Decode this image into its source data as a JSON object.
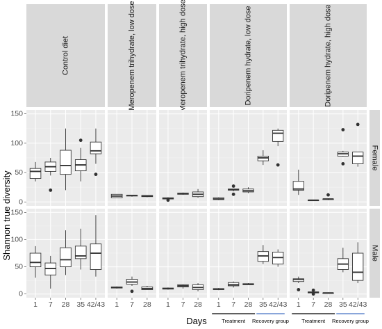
{
  "chart_data": {
    "type": "boxplot",
    "title": "",
    "xlabel": "Days",
    "ylabel": "Shannon true diversity",
    "ylim": [
      0,
      150
    ],
    "yticks": [
      0,
      50,
      100,
      150
    ],
    "columns": [
      "Control diet",
      "Meropenem trihydrate, low dose",
      "Meropenem trihydrate, high dose",
      "Doripenem hydrate, low dose",
      "Doripenem hydrate, high dose"
    ],
    "rows": [
      "Female",
      "Male"
    ],
    "column_days": [
      [
        "1",
        "7",
        "28",
        "35",
        "42/43"
      ],
      [
        "1",
        "7",
        "28"
      ],
      [
        "1",
        "7",
        "28"
      ],
      [
        "1",
        "7",
        "28",
        "35",
        "42/43"
      ],
      [
        "1",
        "7",
        "28",
        "35",
        "42/43"
      ]
    ],
    "groups": [
      {
        "label": "Treatment",
        "days": [
          "1",
          "7",
          "28"
        ],
        "color": "#000000"
      },
      {
        "label": "Recovery group",
        "days": [
          "35",
          "42/43"
        ],
        "color": "#4472c4"
      }
    ],
    "grid": true,
    "boxes": [
      {
        "row": "Female",
        "column": "Control diet",
        "day": "1",
        "min": 35,
        "q1": 40,
        "median": 52,
        "q3": 57,
        "max": 68,
        "outliers": []
      },
      {
        "row": "Female",
        "column": "Control diet",
        "day": "7",
        "min": 45,
        "q1": 52,
        "median": 60,
        "q3": 68,
        "max": 75,
        "outliers": [
          20
        ]
      },
      {
        "row": "Female",
        "column": "Control diet",
        "day": "28",
        "min": 20,
        "q1": 47,
        "median": 62,
        "q3": 88,
        "max": 125,
        "outliers": []
      },
      {
        "row": "Female",
        "column": "Control diet",
        "day": "35",
        "min": 35,
        "q1": 53,
        "median": 63,
        "q3": 72,
        "max": 92,
        "outliers": [
          105
        ]
      },
      {
        "row": "Female",
        "column": "Control diet",
        "day": "42/43",
        "min": 65,
        "q1": 82,
        "median": 87,
        "q3": 102,
        "max": 125,
        "outliers": [
          47
        ]
      },
      {
        "row": "Female",
        "column": "Meropenem trihydrate, low dose",
        "day": "1",
        "min": 7,
        "q1": 7,
        "median": 10,
        "q3": 13,
        "max": 13,
        "outliers": []
      },
      {
        "row": "Female",
        "column": "Meropenem trihydrate, low dose",
        "day": "7",
        "min": 9,
        "q1": 10,
        "median": 11,
        "q3": 11,
        "max": 11,
        "outliers": []
      },
      {
        "row": "Female",
        "column": "Meropenem trihydrate, low dose",
        "day": "28",
        "min": 8,
        "q1": 9,
        "median": 10,
        "q3": 11,
        "max": 11,
        "outliers": []
      },
      {
        "row": "Female",
        "column": "Meropenem trihydrate, high dose",
        "day": "1",
        "min": 5,
        "q1": 5,
        "median": 6,
        "q3": 7,
        "max": 8,
        "outliers": [
          3
        ]
      },
      {
        "row": "Female",
        "column": "Meropenem trihydrate, high dose",
        "day": "7",
        "min": 12,
        "q1": 13,
        "median": 14,
        "q3": 15,
        "max": 16,
        "outliers": []
      },
      {
        "row": "Female",
        "column": "Meropenem trihydrate, high dose",
        "day": "28",
        "min": 7,
        "q1": 9,
        "median": 13,
        "q3": 17,
        "max": 22,
        "outliers": []
      },
      {
        "row": "Female",
        "column": "Doripenem hydrate, low dose",
        "day": "1",
        "min": 3,
        "q1": 4,
        "median": 5,
        "q3": 7,
        "max": 8,
        "outliers": []
      },
      {
        "row": "Female",
        "column": "Doripenem hydrate, low dose",
        "day": "7",
        "min": 18,
        "q1": 20,
        "median": 21,
        "q3": 22,
        "max": 22,
        "outliers": [
          27,
          13
        ]
      },
      {
        "row": "Female",
        "column": "Doripenem hydrate, low dose",
        "day": "28",
        "min": 15,
        "q1": 17,
        "median": 19,
        "q3": 22,
        "max": 25,
        "outliers": []
      },
      {
        "row": "Female",
        "column": "Doripenem hydrate, low dose",
        "day": "35",
        "min": 63,
        "q1": 70,
        "median": 75,
        "q3": 78,
        "max": 88,
        "outliers": []
      },
      {
        "row": "Female",
        "column": "Doripenem hydrate, low dose",
        "day": "42/43",
        "min": 95,
        "q1": 103,
        "median": 117,
        "q3": 122,
        "max": 125,
        "outliers": [
          63
        ]
      },
      {
        "row": "Female",
        "column": "Doripenem hydrate, high dose",
        "day": "1",
        "min": 12,
        "q1": 20,
        "median": 22,
        "q3": 35,
        "max": 55,
        "outliers": []
      },
      {
        "row": "Female",
        "column": "Doripenem hydrate, high dose",
        "day": "7",
        "min": 2,
        "q1": 2,
        "median": 3,
        "q3": 3,
        "max": 3,
        "outliers": []
      },
      {
        "row": "Female",
        "column": "Doripenem hydrate, high dose",
        "day": "28",
        "min": 3,
        "q1": 4,
        "median": 5,
        "q3": 5,
        "max": 6,
        "outliers": [
          12
        ]
      },
      {
        "row": "Female",
        "column": "Doripenem hydrate, high dose",
        "day": "35",
        "min": 77,
        "q1": 78,
        "median": 82,
        "q3": 85,
        "max": 87,
        "outliers": [
          123,
          65
        ]
      },
      {
        "row": "Female",
        "column": "Doripenem hydrate, high dose",
        "day": "42/43",
        "min": 60,
        "q1": 65,
        "median": 78,
        "q3": 85,
        "max": 85,
        "outliers": [
          132
        ]
      },
      {
        "row": "Male",
        "column": "Control diet",
        "day": "1",
        "min": 30,
        "q1": 50,
        "median": 58,
        "q3": 75,
        "max": 88,
        "outliers": []
      },
      {
        "row": "Male",
        "column": "Control diet",
        "day": "7",
        "min": 10,
        "q1": 35,
        "median": 47,
        "q3": 57,
        "max": 70,
        "outliers": []
      },
      {
        "row": "Male",
        "column": "Control diet",
        "day": "28",
        "min": 35,
        "q1": 50,
        "median": 63,
        "q3": 85,
        "max": 117,
        "outliers": []
      },
      {
        "row": "Male",
        "column": "Control diet",
        "day": "35",
        "min": 45,
        "q1": 65,
        "median": 70,
        "q3": 88,
        "max": 120,
        "outliers": []
      },
      {
        "row": "Male",
        "column": "Control diet",
        "day": "42/43",
        "min": 32,
        "q1": 45,
        "median": 75,
        "q3": 92,
        "max": 145,
        "outliers": []
      },
      {
        "row": "Male",
        "column": "Meropenem trihydrate, low dose",
        "day": "1",
        "min": 10,
        "q1": 11,
        "median": 12,
        "q3": 13,
        "max": 14,
        "outliers": []
      },
      {
        "row": "Male",
        "column": "Meropenem trihydrate, low dose",
        "day": "7",
        "min": 15,
        "q1": 18,
        "median": 22,
        "q3": 27,
        "max": 32,
        "outliers": [
          5
        ]
      },
      {
        "row": "Male",
        "column": "Meropenem trihydrate, low dose",
        "day": "28",
        "min": 8,
        "q1": 8,
        "median": 10,
        "q3": 13,
        "max": 15,
        "outliers": []
      },
      {
        "row": "Male",
        "column": "Meropenem trihydrate, high dose",
        "day": "1",
        "min": 8,
        "q1": 9,
        "median": 10,
        "q3": 11,
        "max": 12,
        "outliers": []
      },
      {
        "row": "Male",
        "column": "Meropenem trihydrate, high dose",
        "day": "7",
        "min": 10,
        "q1": 13,
        "median": 15,
        "q3": 17,
        "max": 18,
        "outliers": []
      },
      {
        "row": "Male",
        "column": "Meropenem trihydrate, high dose",
        "day": "28",
        "min": 5,
        "q1": 8,
        "median": 12,
        "q3": 17,
        "max": 20,
        "outliers": []
      },
      {
        "row": "Male",
        "column": "Doripenem hydrate, low dose",
        "day": "1",
        "min": 7,
        "q1": 8,
        "median": 9,
        "q3": 10,
        "max": 11,
        "outliers": []
      },
      {
        "row": "Male",
        "column": "Doripenem hydrate, low dose",
        "day": "7",
        "min": 12,
        "q1": 15,
        "median": 17,
        "q3": 21,
        "max": 23,
        "outliers": []
      },
      {
        "row": "Male",
        "column": "Doripenem hydrate, low dose",
        "day": "28",
        "min": 17,
        "q1": 17,
        "median": 18,
        "q3": 19,
        "max": 20,
        "outliers": []
      },
      {
        "row": "Male",
        "column": "Doripenem hydrate, low dose",
        "day": "35",
        "min": 55,
        "q1": 60,
        "median": 70,
        "q3": 78,
        "max": 90,
        "outliers": []
      },
      {
        "row": "Male",
        "column": "Doripenem hydrate, low dose",
        "day": "42/43",
        "min": 50,
        "q1": 55,
        "median": 67,
        "q3": 77,
        "max": 82,
        "outliers": []
      },
      {
        "row": "Male",
        "column": "Doripenem hydrate, high dose",
        "day": "1",
        "min": 20,
        "q1": 23,
        "median": 27,
        "q3": 28,
        "max": 32,
        "outliers": [
          8
        ]
      },
      {
        "row": "Male",
        "column": "Doripenem hydrate, high dose",
        "day": "7",
        "min": 1,
        "q1": 2,
        "median": 3,
        "q3": 4,
        "max": 5,
        "outliers": [
          7,
          0
        ]
      },
      {
        "row": "Male",
        "column": "Doripenem hydrate, high dose",
        "day": "28",
        "min": 1,
        "q1": 1,
        "median": 2,
        "q3": 2,
        "max": 3,
        "outliers": []
      },
      {
        "row": "Male",
        "column": "Doripenem hydrate, high dose",
        "day": "35",
        "min": 40,
        "q1": 45,
        "median": 55,
        "q3": 65,
        "max": 85,
        "outliers": []
      },
      {
        "row": "Male",
        "column": "Doripenem hydrate, high dose",
        "day": "42/43",
        "min": 20,
        "q1": 25,
        "median": 40,
        "q3": 75,
        "max": 95,
        "outliers": []
      }
    ]
  }
}
